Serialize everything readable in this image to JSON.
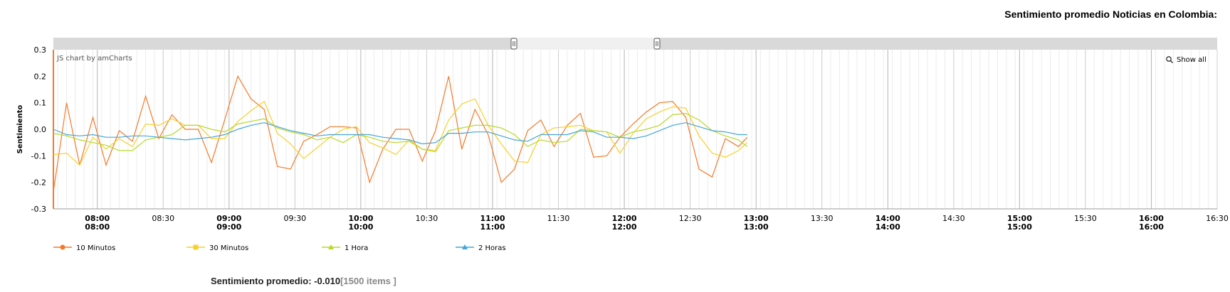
{
  "page": {
    "title": "Sentimiento promedio Noticias en Colombia:"
  },
  "watermark": "JS chart by amCharts",
  "zoom": {
    "show_all_label": "Show all",
    "icon": "magnifier-icon"
  },
  "summary": {
    "label": "Sentimiento promedio:",
    "value": "-0.010",
    "items": "[1500 items ]"
  },
  "chart_data": {
    "type": "line",
    "ylabel": "Sentimiento",
    "xlabel": "",
    "ylim": [
      -0.3,
      0.3
    ],
    "yticks": [
      "0.3",
      "0.2",
      "0.1",
      "0.0",
      "-0.1",
      "-0.2",
      "-0.3"
    ],
    "xlim": [
      "07:40",
      "16:30"
    ],
    "xticks": [
      {
        "t": "08:00",
        "label": "08:00",
        "major": true
      },
      {
        "t": "08:30",
        "label": "08:30",
        "major": false
      },
      {
        "t": "09:00",
        "label": "09:00",
        "major": true
      },
      {
        "t": "09:30",
        "label": "09:30",
        "major": false
      },
      {
        "t": "10:00",
        "label": "10:00",
        "major": true
      },
      {
        "t": "10:30",
        "label": "10:30",
        "major": false
      },
      {
        "t": "11:00",
        "label": "11:00",
        "major": true
      },
      {
        "t": "11:30",
        "label": "11:30",
        "major": false
      },
      {
        "t": "12:00",
        "label": "12:00",
        "major": true
      },
      {
        "t": "12:30",
        "label": "12:30",
        "major": false
      },
      {
        "t": "13:00",
        "label": "13:00",
        "major": true
      },
      {
        "t": "13:30",
        "label": "13:30",
        "major": false
      },
      {
        "t": "14:00",
        "label": "14:00",
        "major": true
      },
      {
        "t": "14:30",
        "label": "14:30",
        "major": false
      },
      {
        "t": "15:00",
        "label": "15:00",
        "major": true
      },
      {
        "t": "15:30",
        "label": "15:30",
        "major": false
      },
      {
        "t": "16:00",
        "label": "16:00",
        "major": true
      },
      {
        "t": "16:30",
        "label": "16:30",
        "major": false
      }
    ],
    "grid": true,
    "legend_position": "bottom-left",
    "series": [
      {
        "name": "10 Minutos",
        "color": "#f47a2a",
        "marker": "circle",
        "points": [
          [
            "07:40",
            -0.235
          ],
          [
            "07:46",
            0.1
          ],
          [
            "07:52",
            -0.135
          ],
          [
            "07:58",
            0.045
          ],
          [
            "08:04",
            -0.135
          ],
          [
            "08:10",
            -0.005
          ],
          [
            "08:16",
            -0.045
          ],
          [
            "08:22",
            0.125
          ],
          [
            "08:28",
            -0.035
          ],
          [
            "08:34",
            0.055
          ],
          [
            "08:40",
            0.0
          ],
          [
            "08:46",
            0.0
          ],
          [
            "08:52",
            -0.125
          ],
          [
            "08:58",
            0.035
          ],
          [
            "09:04",
            0.2
          ],
          [
            "09:10",
            0.115
          ],
          [
            "09:16",
            0.075
          ],
          [
            "09:22",
            -0.14
          ],
          [
            "09:28",
            -0.15
          ],
          [
            "09:34",
            -0.045
          ],
          [
            "09:40",
            -0.02
          ],
          [
            "09:46",
            0.01
          ],
          [
            "09:52",
            0.01
          ],
          [
            "09:58",
            0.005
          ],
          [
            "10:04",
            -0.2
          ],
          [
            "10:10",
            -0.075
          ],
          [
            "10:16",
            0.0
          ],
          [
            "10:22",
            0.0
          ],
          [
            "10:28",
            -0.12
          ],
          [
            "10:34",
            -0.005
          ],
          [
            "10:40",
            0.2
          ],
          [
            "10:46",
            -0.075
          ],
          [
            "10:52",
            0.075
          ],
          [
            "10:58",
            -0.02
          ],
          [
            "11:04",
            -0.2
          ],
          [
            "11:10",
            -0.15
          ],
          [
            "11:16",
            -0.005
          ],
          [
            "11:22",
            0.035
          ],
          [
            "11:28",
            -0.065
          ],
          [
            "11:34",
            0.015
          ],
          [
            "11:40",
            0.06
          ],
          [
            "11:46",
            -0.105
          ],
          [
            "11:52",
            -0.1
          ],
          [
            "11:58",
            -0.03
          ],
          [
            "12:04",
            0.02
          ],
          [
            "12:10",
            0.065
          ],
          [
            "12:16",
            0.1
          ],
          [
            "12:22",
            0.105
          ],
          [
            "12:28",
            0.045
          ],
          [
            "12:34",
            -0.15
          ],
          [
            "12:40",
            -0.18
          ],
          [
            "12:46",
            -0.035
          ],
          [
            "12:52",
            -0.065
          ],
          [
            "12:56",
            -0.03
          ]
        ]
      },
      {
        "name": "30 Minutos",
        "color": "#f7d02c",
        "marker": "square",
        "points": [
          [
            "07:40",
            -0.095
          ],
          [
            "07:46",
            -0.09
          ],
          [
            "07:52",
            -0.135
          ],
          [
            "07:58",
            -0.03
          ],
          [
            "08:04",
            -0.075
          ],
          [
            "08:10",
            -0.035
          ],
          [
            "08:16",
            -0.065
          ],
          [
            "08:22",
            0.02
          ],
          [
            "08:28",
            0.015
          ],
          [
            "08:34",
            0.04
          ],
          [
            "08:40",
            0.015
          ],
          [
            "08:46",
            0.015
          ],
          [
            "08:52",
            -0.035
          ],
          [
            "08:58",
            -0.035
          ],
          [
            "09:04",
            0.03
          ],
          [
            "09:10",
            0.07
          ],
          [
            "09:16",
            0.105
          ],
          [
            "09:22",
            -0.015
          ],
          [
            "09:28",
            -0.055
          ],
          [
            "09:34",
            -0.11
          ],
          [
            "09:40",
            -0.07
          ],
          [
            "09:46",
            -0.03
          ],
          [
            "09:52",
            0.0
          ],
          [
            "09:58",
            0.01
          ],
          [
            "10:04",
            -0.05
          ],
          [
            "10:10",
            -0.07
          ],
          [
            "10:16",
            -0.095
          ],
          [
            "10:22",
            -0.04
          ],
          [
            "10:28",
            -0.075
          ],
          [
            "10:34",
            -0.08
          ],
          [
            "10:40",
            0.035
          ],
          [
            "10:46",
            0.095
          ],
          [
            "10:52",
            0.115
          ],
          [
            "10:58",
            0.015
          ],
          [
            "11:04",
            -0.055
          ],
          [
            "11:10",
            -0.12
          ],
          [
            "11:16",
            -0.125
          ],
          [
            "11:22",
            -0.02
          ],
          [
            "11:28",
            0.005
          ],
          [
            "11:34",
            0.01
          ],
          [
            "11:40",
            0.015
          ],
          [
            "11:46",
            -0.005
          ],
          [
            "11:52",
            -0.01
          ],
          [
            "11:58",
            -0.09
          ],
          [
            "12:04",
            -0.015
          ],
          [
            "12:10",
            0.04
          ],
          [
            "12:16",
            0.065
          ],
          [
            "12:22",
            0.085
          ],
          [
            "12:28",
            0.08
          ],
          [
            "12:34",
            -0.025
          ],
          [
            "12:40",
            -0.09
          ],
          [
            "12:46",
            -0.105
          ],
          [
            "12:52",
            -0.08
          ],
          [
            "12:56",
            -0.05
          ]
        ]
      },
      {
        "name": "1 Hora",
        "color": "#b8d82b",
        "marker": "triangle",
        "points": [
          [
            "07:40",
            -0.015
          ],
          [
            "07:46",
            -0.025
          ],
          [
            "07:52",
            -0.04
          ],
          [
            "07:58",
            -0.05
          ],
          [
            "08:04",
            -0.06
          ],
          [
            "08:10",
            -0.08
          ],
          [
            "08:16",
            -0.08
          ],
          [
            "08:22",
            -0.04
          ],
          [
            "08:28",
            -0.03
          ],
          [
            "08:34",
            -0.02
          ],
          [
            "08:40",
            0.015
          ],
          [
            "08:46",
            0.015
          ],
          [
            "08:52",
            0.0
          ],
          [
            "08:58",
            -0.01
          ],
          [
            "09:04",
            0.02
          ],
          [
            "09:10",
            0.03
          ],
          [
            "09:16",
            0.04
          ],
          [
            "09:22",
            0.005
          ],
          [
            "09:28",
            -0.01
          ],
          [
            "09:34",
            -0.02
          ],
          [
            "09:40",
            -0.04
          ],
          [
            "09:46",
            -0.03
          ],
          [
            "09:52",
            -0.05
          ],
          [
            "09:58",
            -0.02
          ],
          [
            "10:04",
            -0.03
          ],
          [
            "10:10",
            -0.045
          ],
          [
            "10:16",
            -0.05
          ],
          [
            "10:22",
            -0.045
          ],
          [
            "10:28",
            -0.075
          ],
          [
            "10:34",
            -0.085
          ],
          [
            "10:40",
            -0.005
          ],
          [
            "10:46",
            0.005
          ],
          [
            "10:52",
            0.015
          ],
          [
            "10:58",
            0.015
          ],
          [
            "11:04",
            0.005
          ],
          [
            "11:10",
            -0.02
          ],
          [
            "11:16",
            -0.065
          ],
          [
            "11:22",
            -0.04
          ],
          [
            "11:28",
            -0.05
          ],
          [
            "11:34",
            -0.045
          ],
          [
            "11:40",
            0.0
          ],
          [
            "11:46",
            -0.005
          ],
          [
            "11:52",
            -0.01
          ],
          [
            "11:58",
            -0.03
          ],
          [
            "12:04",
            -0.01
          ],
          [
            "12:10",
            0.0
          ],
          [
            "12:16",
            0.015
          ],
          [
            "12:22",
            0.055
          ],
          [
            "12:28",
            0.06
          ],
          [
            "12:34",
            0.035
          ],
          [
            "12:40",
            -0.005
          ],
          [
            "12:46",
            -0.025
          ],
          [
            "12:52",
            -0.04
          ],
          [
            "12:56",
            -0.065
          ]
        ]
      },
      {
        "name": "2 Horas",
        "color": "#45a6d8",
        "marker": "triangle",
        "points": [
          [
            "07:40",
            0.0
          ],
          [
            "07:46",
            -0.02
          ],
          [
            "07:52",
            -0.025
          ],
          [
            "07:58",
            -0.02
          ],
          [
            "08:04",
            -0.03
          ],
          [
            "08:10",
            -0.03
          ],
          [
            "08:16",
            -0.025
          ],
          [
            "08:22",
            -0.025
          ],
          [
            "08:28",
            -0.03
          ],
          [
            "08:34",
            -0.035
          ],
          [
            "08:40",
            -0.04
          ],
          [
            "08:46",
            -0.035
          ],
          [
            "08:52",
            -0.03
          ],
          [
            "08:58",
            -0.02
          ],
          [
            "09:04",
            0.0
          ],
          [
            "09:10",
            0.015
          ],
          [
            "09:16",
            0.025
          ],
          [
            "09:22",
            0.01
          ],
          [
            "09:28",
            -0.005
          ],
          [
            "09:34",
            -0.015
          ],
          [
            "09:40",
            -0.025
          ],
          [
            "09:46",
            -0.02
          ],
          [
            "09:52",
            -0.02
          ],
          [
            "09:58",
            -0.02
          ],
          [
            "10:04",
            -0.02
          ],
          [
            "10:10",
            -0.03
          ],
          [
            "10:16",
            -0.035
          ],
          [
            "10:22",
            -0.04
          ],
          [
            "10:28",
            -0.055
          ],
          [
            "10:34",
            -0.05
          ],
          [
            "10:40",
            -0.015
          ],
          [
            "10:46",
            -0.015
          ],
          [
            "10:52",
            -0.01
          ],
          [
            "10:58",
            -0.01
          ],
          [
            "11:04",
            -0.025
          ],
          [
            "11:10",
            -0.04
          ],
          [
            "11:16",
            -0.045
          ],
          [
            "11:22",
            -0.02
          ],
          [
            "11:28",
            -0.02
          ],
          [
            "11:34",
            -0.02
          ],
          [
            "11:40",
            -0.005
          ],
          [
            "11:46",
            -0.01
          ],
          [
            "11:52",
            -0.03
          ],
          [
            "11:58",
            -0.03
          ],
          [
            "12:04",
            -0.035
          ],
          [
            "12:10",
            -0.025
          ],
          [
            "12:16",
            -0.005
          ],
          [
            "12:22",
            0.015
          ],
          [
            "12:28",
            0.025
          ],
          [
            "12:34",
            0.01
          ],
          [
            "12:40",
            -0.005
          ],
          [
            "12:46",
            -0.01
          ],
          [
            "12:52",
            -0.02
          ],
          [
            "12:56",
            -0.02
          ]
        ]
      }
    ]
  }
}
